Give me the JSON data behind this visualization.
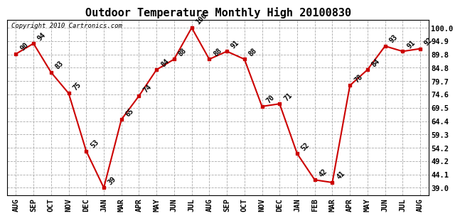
{
  "title": "Outdoor Temperature Monthly High 20100830",
  "copyright": "Copyright 2010 Cartronics.com",
  "months": [
    "AUG",
    "SEP",
    "OCT",
    "NOV",
    "DEC",
    "JAN",
    "MAR",
    "APR",
    "MAY",
    "JUN",
    "JUL",
    "AUG",
    "SEP",
    "OCT",
    "NOV",
    "DEC",
    "JAN",
    "FEB",
    "MAR",
    "APR",
    "MAY",
    "JUN",
    "JUL",
    "AUG"
  ],
  "values": [
    90,
    94,
    83,
    75,
    53,
    39,
    65,
    74,
    84,
    88,
    100,
    88,
    91,
    88,
    70,
    71,
    52,
    42,
    41,
    78,
    84,
    93,
    91,
    92
  ],
  "yticks": [
    39.0,
    44.1,
    49.2,
    54.2,
    59.3,
    64.4,
    69.5,
    74.6,
    79.7,
    84.8,
    89.8,
    94.9,
    100.0
  ],
  "line_color": "#cc0000",
  "marker_color": "#cc0000",
  "bg_color": "#ffffff",
  "grid_color": "#aaaaaa",
  "title_fontsize": 11,
  "tick_fontsize": 7.5,
  "label_fontsize": 7,
  "copyright_fontsize": 6.5
}
